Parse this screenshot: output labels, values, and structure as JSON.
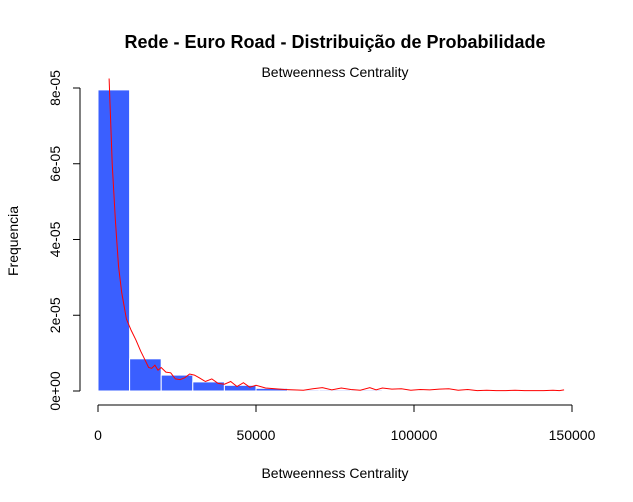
{
  "chart_data": {
    "type": "bar",
    "title": "Rede - Euro Road - Distribuição de Probabilidade",
    "subtitle": "Betweenness Centrality",
    "xlabel": "Betweenness Centrality",
    "ylabel": "Frequencia",
    "xlim": [
      0,
      150000
    ],
    "ylim": [
      0,
      8e-05
    ],
    "x_ticks": [
      0,
      50000,
      100000,
      150000
    ],
    "x_tick_labels": [
      "0",
      "50000",
      "100000",
      "150000"
    ],
    "y_ticks": [
      0,
      2e-05,
      4e-05,
      6e-05,
      8e-05
    ],
    "y_tick_labels": [
      "0e+00",
      "2e-05",
      "4e-05",
      "6e-05",
      "8e-05"
    ],
    "bins": [
      {
        "start": 0,
        "end": 10000,
        "density": 7.95e-05
      },
      {
        "start": 10000,
        "end": 20000,
        "density": 8.5e-06
      },
      {
        "start": 20000,
        "end": 30000,
        "density": 4.2e-06
      },
      {
        "start": 30000,
        "end": 40000,
        "density": 2.4e-06
      },
      {
        "start": 40000,
        "end": 50000,
        "density": 1.5e-06
      },
      {
        "start": 50000,
        "end": 60000,
        "density": 7e-07
      },
      {
        "start": 60000,
        "end": 70000,
        "density": 3e-07
      },
      {
        "start": 70000,
        "end": 80000,
        "density": 3e-07
      },
      {
        "start": 80000,
        "end": 90000,
        "density": 3e-07
      },
      {
        "start": 90000,
        "end": 100000,
        "density": 2e-07
      },
      {
        "start": 100000,
        "end": 110000,
        "density": 2e-07
      },
      {
        "start": 110000,
        "end": 120000,
        "density": 1e-07
      },
      {
        "start": 120000,
        "end": 130000,
        "density": 1e-07
      },
      {
        "start": 130000,
        "end": 140000,
        "density": 1e-07
      },
      {
        "start": 140000,
        "end": 150000,
        "density": 1e-07
      }
    ],
    "density_curve": {
      "x": [
        3500,
        4500,
        5500,
        6500,
        7500,
        9000,
        10500,
        12000,
        13500,
        15000,
        16000,
        17000,
        18000,
        19000,
        20000,
        21500,
        23000,
        24500,
        26000,
        27500,
        29000,
        30500,
        32000,
        34000,
        36000,
        38000,
        40000,
        42000,
        44000,
        46000,
        48000,
        50000,
        53000,
        56000,
        59000,
        62000,
        65000,
        68000,
        71000,
        74000,
        77000,
        80000,
        83000,
        86000,
        88000,
        90000,
        93000,
        96000,
        99000,
        102000,
        105000,
        108000,
        111000,
        114000,
        117000,
        120000,
        123000,
        126000,
        129000,
        132000,
        135000,
        138000,
        141000,
        144000,
        146000,
        147500
      ],
      "y": [
        8.25e-05,
        6e-05,
        4.5e-05,
        3.3e-05,
        2.6e-05,
        1.9e-05,
        1.6e-05,
        1.35e-05,
        1.05e-05,
        8e-06,
        6.2e-06,
        6e-06,
        6.8e-06,
        5.5e-06,
        6.2e-06,
        5e-06,
        4.8e-06,
        3.2e-06,
        3e-06,
        3.5e-06,
        4.5e-06,
        4.2e-06,
        3.5e-06,
        2.5e-06,
        3.2e-06,
        2e-06,
        1.8e-06,
        2.5e-06,
        1.2e-06,
        2.2e-06,
        1e-06,
        1.5e-06,
        8e-07,
        6e-07,
        4e-07,
        3e-07,
        2e-07,
        6e-07,
        9e-07,
        3e-07,
        8e-07,
        4e-07,
        2e-07,
        9e-07,
        3e-07,
        8e-07,
        5e-07,
        6e-07,
        2e-07,
        4e-07,
        3e-07,
        5e-07,
        6e-07,
        2e-07,
        4e-07,
        1e-07,
        2e-07,
        1e-07,
        1e-07,
        2e-07,
        1e-07,
        1e-07,
        1e-07,
        2e-07,
        1e-07,
        3e-07
      ]
    },
    "colors": {
      "bars": "#3a5fff",
      "bar_border": "#ffffff",
      "density_line": "#ff0000"
    }
  }
}
